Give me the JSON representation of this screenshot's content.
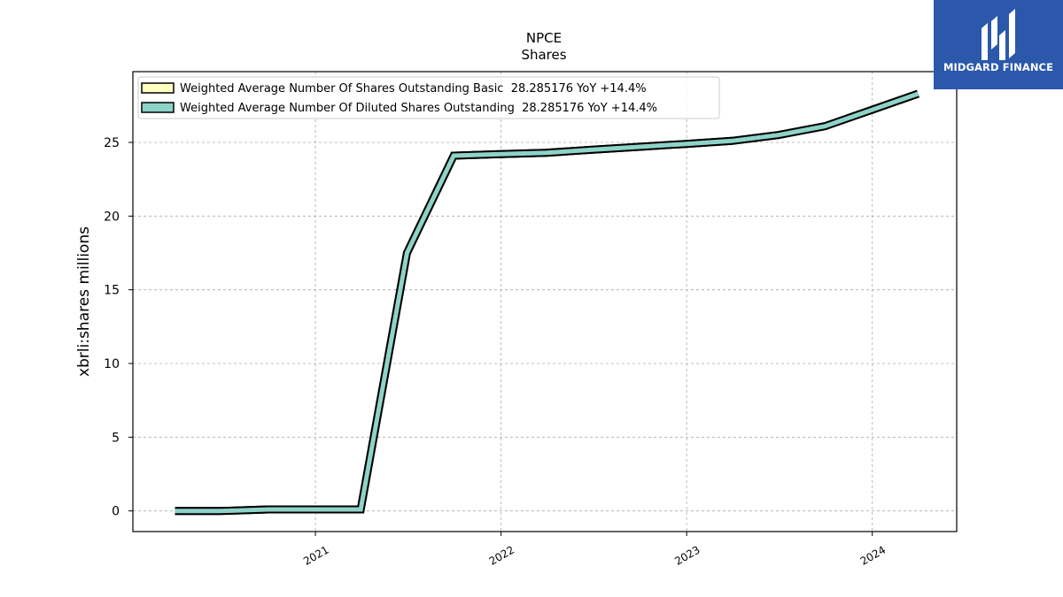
{
  "brand": {
    "name": "MIDGARD FINANCE",
    "logo_icon": "midgard-finance-logo-icon",
    "background": "#2b58aa"
  },
  "chart_data": {
    "type": "line",
    "title": "NPCE",
    "subtitle": "Shares",
    "ylabel": "xbrli:shares millions",
    "xlabel": "",
    "x_ticks": [
      "2021",
      "2022",
      "2023",
      "2024"
    ],
    "y_ticks": [
      "0",
      "5",
      "10",
      "15",
      "20",
      "25"
    ],
    "ylim": [
      -1.4,
      29.8
    ],
    "xlim": [
      "2020-01-08",
      "2024-06-15"
    ],
    "grid": true,
    "legend_position": "top-left",
    "series": [
      {
        "name": "Weighted Average Number Of Shares Outstanding Basic  28.285176 YoY +14.4%",
        "color": "#ffffc0",
        "x": [
          "2020-03-31",
          "2020-06-30",
          "2020-09-30",
          "2020-12-31",
          "2021-03-31",
          "2021-06-30",
          "2021-09-30",
          "2021-12-31",
          "2022-03-31",
          "2022-06-30",
          "2022-09-30",
          "2022-12-31",
          "2023-03-31",
          "2023-06-30",
          "2023-09-30",
          "2023-12-31",
          "2024-03-31"
        ],
        "values": [
          0.0,
          0.0,
          0.1,
          0.1,
          0.1,
          17.5,
          24.1,
          24.2,
          24.3,
          24.5,
          24.7,
          24.9,
          25.1,
          25.5,
          26.1,
          27.2,
          28.3
        ]
      },
      {
        "name": "Weighted Average Number Of Diluted Shares Outstanding  28.285176 YoY +14.4%",
        "color": "#8dd3c7",
        "x": [
          "2020-03-31",
          "2020-06-30",
          "2020-09-30",
          "2020-12-31",
          "2021-03-31",
          "2021-06-30",
          "2021-09-30",
          "2021-12-31",
          "2022-03-31",
          "2022-06-30",
          "2022-09-30",
          "2022-12-31",
          "2023-03-31",
          "2023-06-30",
          "2023-09-30",
          "2023-12-31",
          "2024-03-31"
        ],
        "values": [
          0.0,
          0.0,
          0.1,
          0.1,
          0.1,
          17.5,
          24.1,
          24.2,
          24.3,
          24.5,
          24.7,
          24.9,
          25.1,
          25.5,
          26.1,
          27.2,
          28.3
        ]
      }
    ]
  }
}
